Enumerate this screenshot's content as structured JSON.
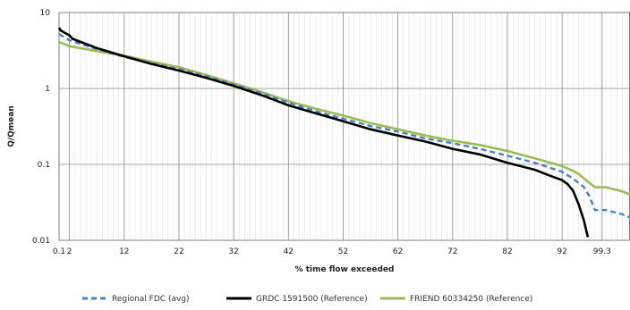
{
  "chart_data": {
    "type": "line",
    "xlabel": "% time flow exceeded",
    "ylabel": "Q/Qmean",
    "y_scale": "log",
    "ylim": [
      0.01,
      10
    ],
    "xlim": [
      0.1,
      104.4
    ],
    "x_tick_labels": [
      "0.1",
      "2",
      "12",
      "22",
      "32",
      "42",
      "52",
      "62",
      "72",
      "82",
      "92",
      "99.3"
    ],
    "y_tick_labels": [
      "10",
      "1",
      "0.1",
      "0.01"
    ],
    "legend_position": "bottom",
    "grid": true,
    "series": [
      {
        "name": "Regional FDC (avg)",
        "color": "#4f81bd",
        "style": "dashed",
        "x": [
          0.1,
          2,
          7,
          12,
          17,
          22,
          27,
          32,
          37,
          42,
          47,
          52,
          57,
          62,
          67,
          72,
          77,
          82,
          87,
          92,
          94,
          96,
          97,
          98,
          99,
          100,
          101,
          102,
          103,
          104.4
        ],
        "y": [
          5.2,
          4.3,
          3.3,
          2.6,
          2.15,
          1.8,
          1.45,
          1.13,
          0.87,
          0.65,
          0.5,
          0.4,
          0.32,
          0.27,
          0.22,
          0.19,
          0.16,
          0.13,
          0.105,
          0.08,
          0.065,
          0.05,
          0.038,
          0.025,
          0.025,
          0.025,
          0.024,
          0.023,
          0.022,
          0.02
        ]
      },
      {
        "name": "GRDC 1591500 (Reference)",
        "color": "#000000",
        "style": "solid",
        "x": [
          0.1,
          0.4,
          2,
          2.6,
          7,
          12,
          17,
          22,
          27,
          32,
          37,
          42,
          47,
          52,
          57,
          62,
          67,
          72,
          77,
          82,
          87,
          90,
          92,
          93,
          94,
          95,
          96,
          96.7
        ],
        "y": [
          6.3,
          5.8,
          5.0,
          4.5,
          3.4,
          2.65,
          2.1,
          1.72,
          1.38,
          1.08,
          0.82,
          0.6,
          0.47,
          0.37,
          0.29,
          0.24,
          0.2,
          0.16,
          0.135,
          0.105,
          0.085,
          0.07,
          0.062,
          0.055,
          0.045,
          0.03,
          0.018,
          0.011
        ]
      },
      {
        "name": "FRIEND 60334250 (Reference)",
        "color": "#9bbb59",
        "style": "solid",
        "x": [
          0.1,
          2,
          7,
          12,
          17,
          22,
          27,
          32,
          37,
          42,
          47,
          52,
          57,
          62,
          67,
          72,
          77,
          82,
          87,
          92,
          94,
          95,
          96,
          97,
          98,
          99,
          100,
          101,
          102,
          103,
          104.4
        ],
        "y": [
          4.1,
          3.6,
          3.1,
          2.7,
          2.25,
          1.9,
          1.5,
          1.17,
          0.9,
          0.68,
          0.54,
          0.44,
          0.35,
          0.29,
          0.24,
          0.205,
          0.18,
          0.15,
          0.12,
          0.095,
          0.082,
          0.075,
          0.065,
          0.057,
          0.05,
          0.05,
          0.05,
          0.048,
          0.046,
          0.044,
          0.04
        ]
      }
    ]
  }
}
